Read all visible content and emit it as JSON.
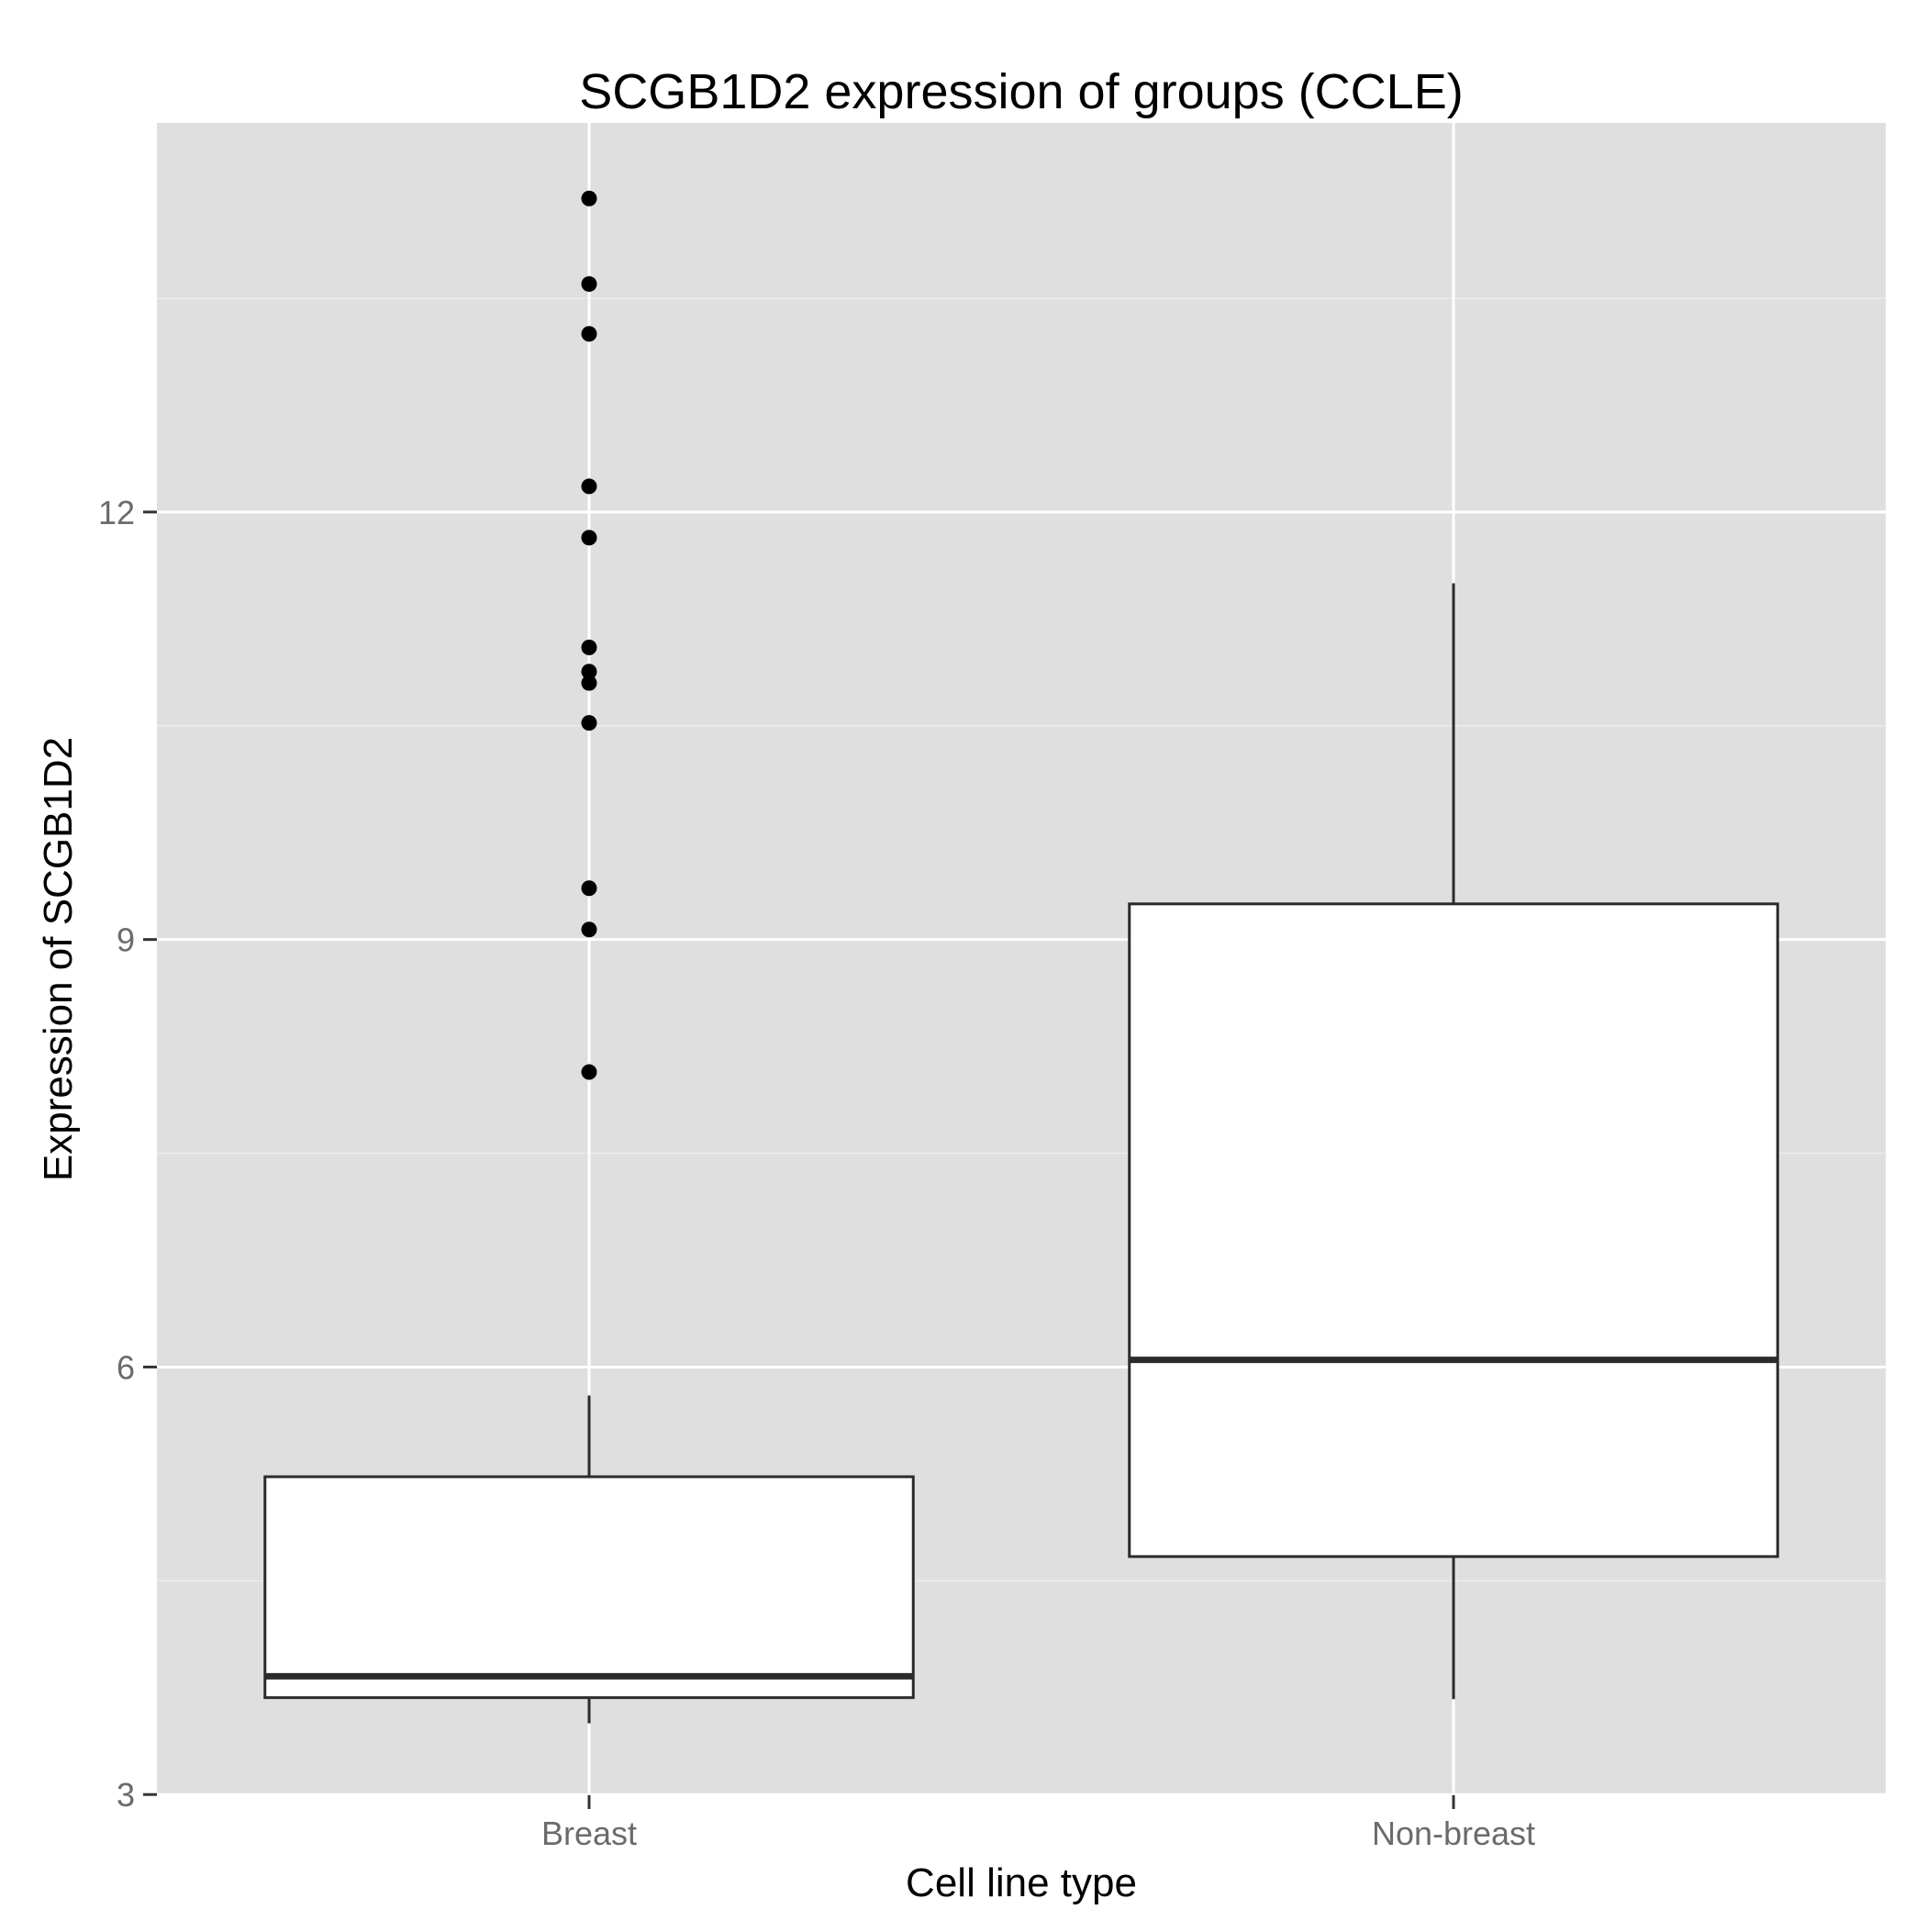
{
  "chart_data": {
    "type": "boxplot",
    "title": "SCGB1D2 expression of groups (CCLE)",
    "xlabel": "Cell line type",
    "ylabel": "Expression of SCGB1D2",
    "categories": [
      "Breast",
      "Non-breast"
    ],
    "y_ticks": [
      3,
      6,
      9,
      12
    ],
    "ylim": [
      2.995,
      14.73
    ],
    "grid": true,
    "colors": {
      "panel": "#dfdfdf",
      "grid_major": "#ffffff",
      "grid_minor": "#ececec",
      "box_fill": "#ffffff",
      "box_stroke": "#2b2b2b",
      "point": "#000000",
      "tick_label": "#6b6b6b",
      "text": "#000000"
    },
    "boxes": [
      {
        "category": "Breast",
        "whisker_low": 3.5,
        "q1": 3.68,
        "median": 3.83,
        "q3": 5.23,
        "whisker_high": 5.8,
        "outliers": [
          14.2,
          13.6,
          13.25,
          12.18,
          11.82,
          11.05,
          10.88,
          10.8,
          10.52,
          9.36,
          9.07,
          8.07
        ]
      },
      {
        "category": "Non-breast",
        "whisker_low": 3.67,
        "q1": 4.67,
        "median": 6.05,
        "q3": 9.25,
        "whisker_high": 11.5,
        "outliers": []
      }
    ]
  }
}
